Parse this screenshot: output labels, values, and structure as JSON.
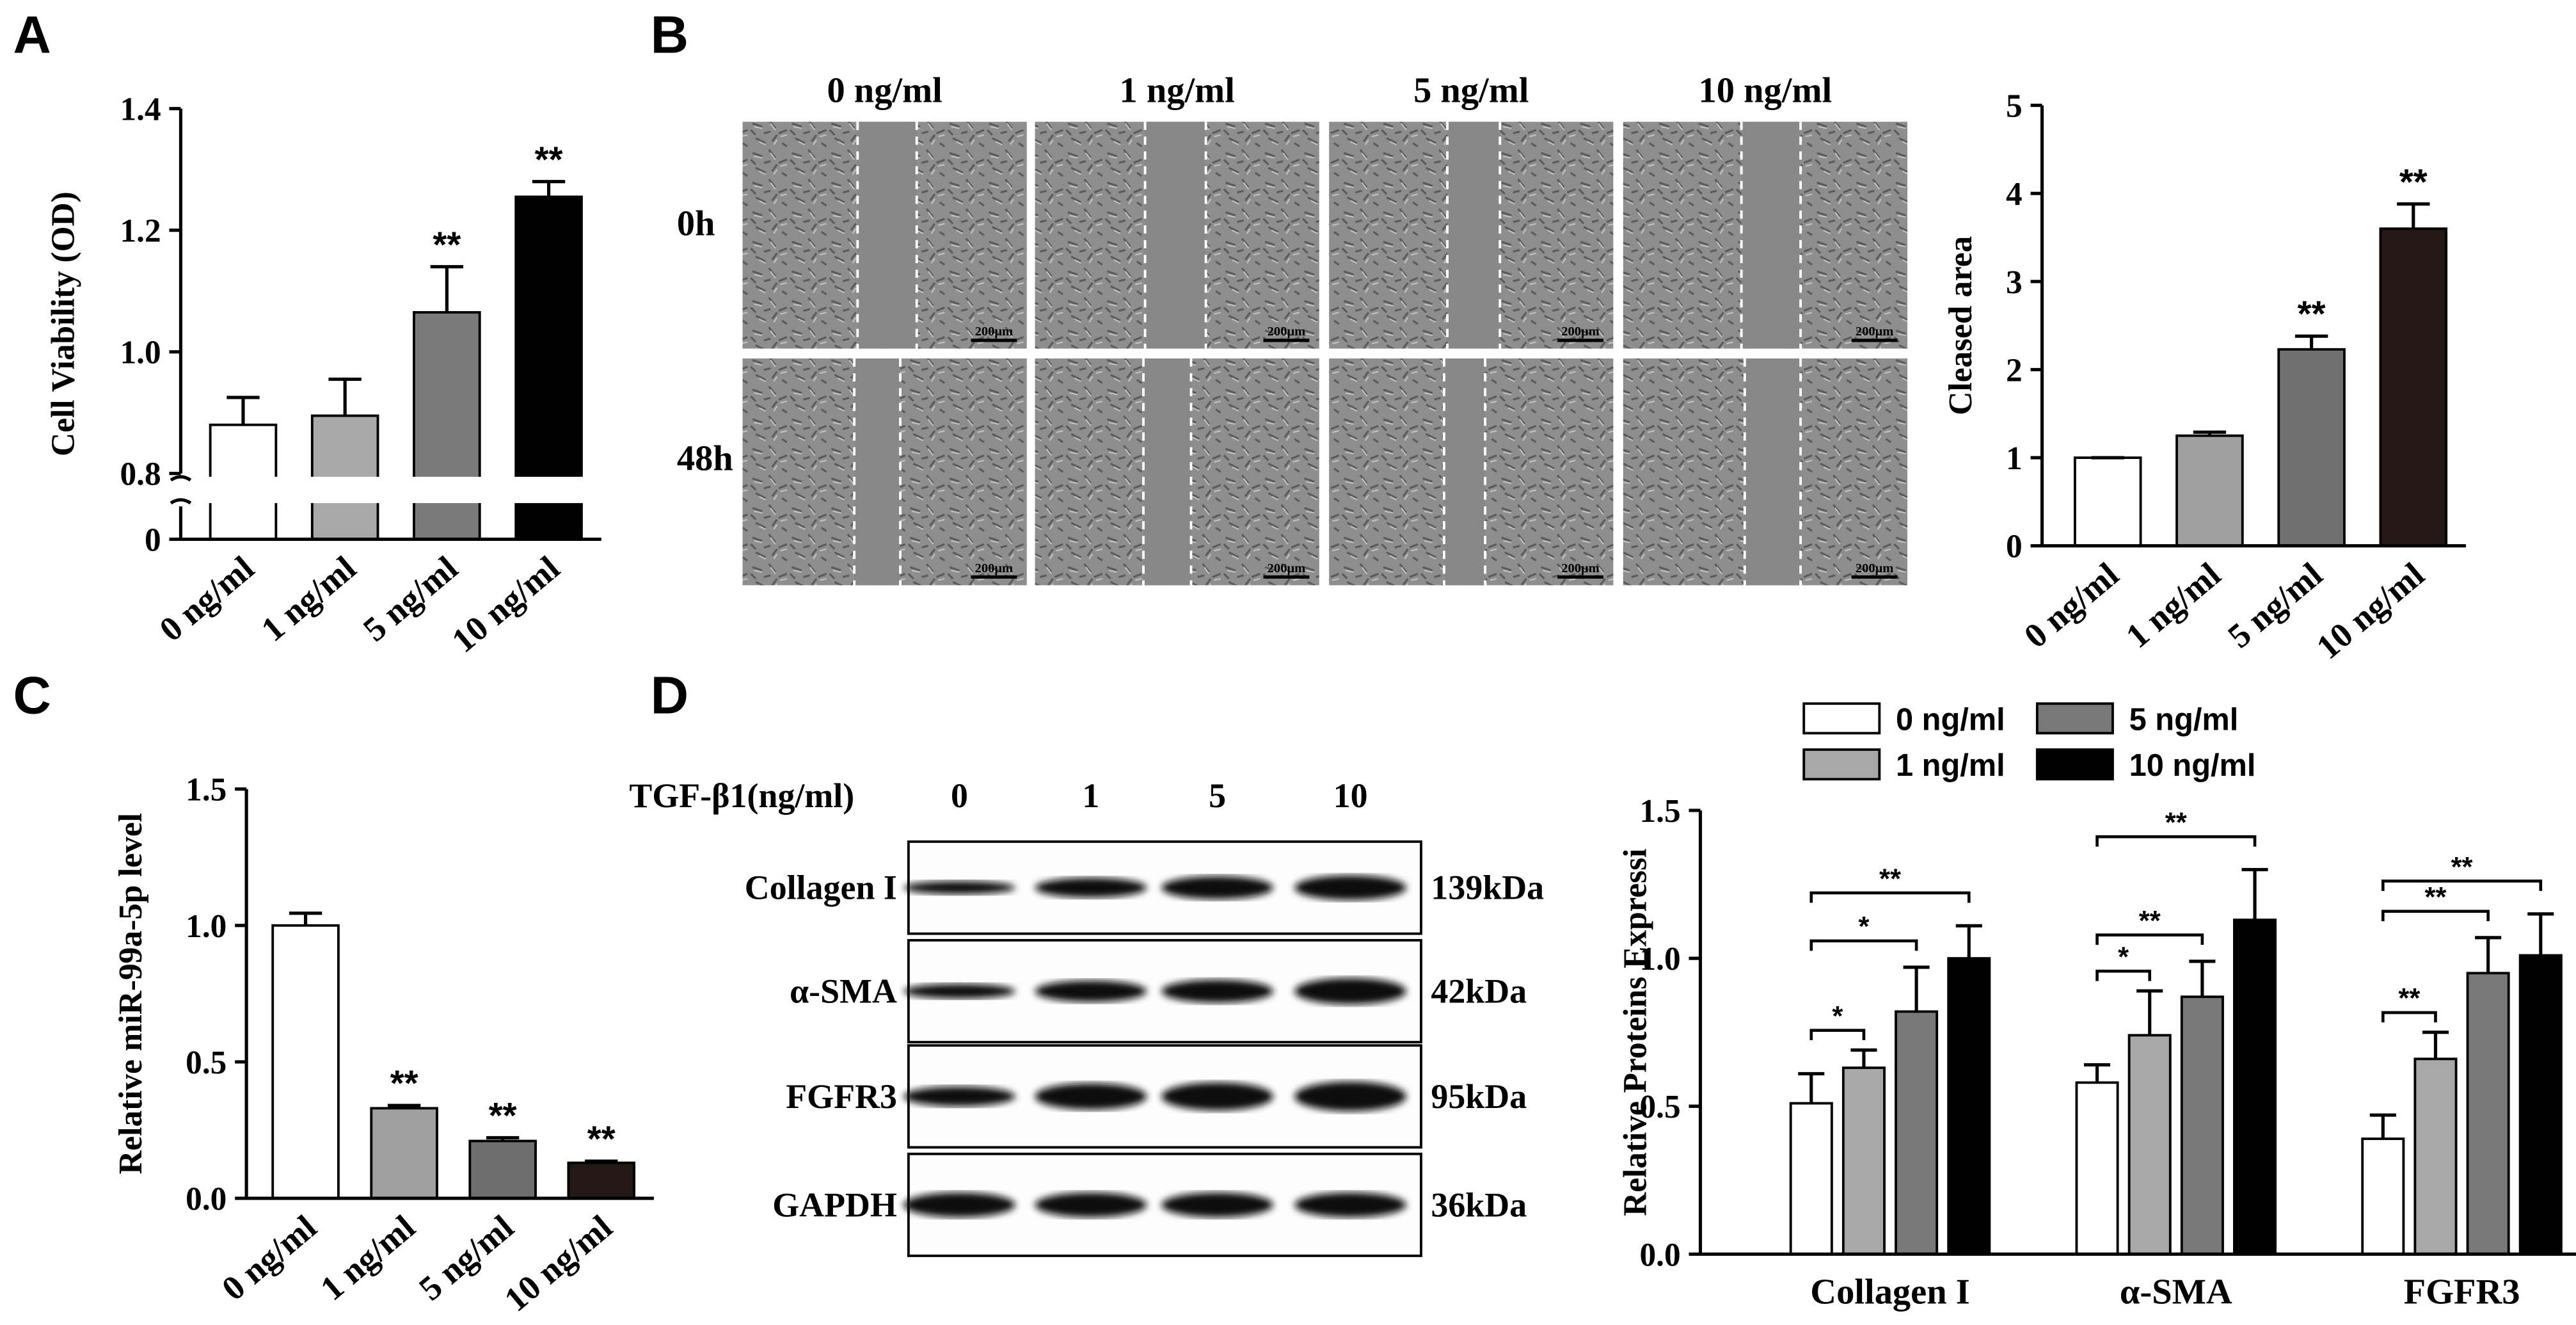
{
  "panel_labels": [
    "A",
    "B",
    "C",
    "D"
  ],
  "chart_data": [
    {
      "type": "bar",
      "ylabel": "Cell Viability (OD)",
      "categories": [
        "0 ng/ml",
        "1 ng/ml",
        "5 ng/ml",
        "10 ng/ml"
      ],
      "values": [
        0.88,
        0.895,
        1.065,
        1.255
      ],
      "errors": [
        0.045,
        0.06,
        0.075,
        0.025
      ],
      "colors": [
        "#ffffff",
        "#a8a8a8",
        "#7a7a7a",
        "#000000"
      ],
      "significance": [
        null,
        null,
        "**",
        "**"
      ],
      "ylim": [
        0,
        1.4
      ],
      "ybreak": [
        0,
        0.8
      ],
      "yticks": [
        0,
        0.8,
        {
          "value": 1,
          "label": "1.0"
        },
        1.2,
        1.4
      ]
    },
    {
      "type": "bar",
      "ylabel": "Cleased area",
      "categories": [
        "0 ng/ml",
        "1 ng/ml",
        "5 ng/ml",
        "10 ng/ml"
      ],
      "values": [
        1,
        1.25,
        2.23,
        3.6
      ],
      "errors": [
        0,
        0.04,
        0.15,
        0.28
      ],
      "colors": [
        "#ffffff",
        "#a0a0a0",
        "#707070",
        "#231815"
      ],
      "significance": [
        null,
        null,
        "**",
        "**"
      ],
      "ylim": [
        0,
        5
      ],
      "yticks": [
        0,
        1,
        2,
        3,
        4,
        5
      ]
    },
    {
      "type": "bar",
      "ylabel": "Relative miR-99a-5p level",
      "categories": [
        "0 ng/ml",
        "1 ng/ml",
        "5 ng/ml",
        "10 ng/ml"
      ],
      "values": [
        1,
        0.33,
        0.21,
        0.13
      ],
      "errors": [
        0.045,
        0.01,
        0.012,
        0.006
      ],
      "colors": [
        "#ffffff",
        "#a0a0a0",
        "#6e6e6e",
        "#231815"
      ],
      "significance": [
        null,
        "**",
        "**",
        "**"
      ],
      "ylim": [
        0,
        1.5
      ],
      "yticks": [
        {
          "value": 0,
          "label": "0.0"
        },
        0.5,
        {
          "value": 1,
          "label": "1.0"
        },
        1.5
      ]
    },
    {
      "type": "grouped_bar",
      "ylabel": "Relative Proteins Expressi",
      "categories": [
        "Collagen I",
        "α-SMA",
        "FGFR3"
      ],
      "series": [
        {
          "name": "0 ng/ml",
          "color": "#ffffff",
          "values": [
            0.51,
            0.58,
            0.39
          ],
          "errors": [
            0.1,
            0.06,
            0.08
          ]
        },
        {
          "name": "1 ng/ml",
          "color": "#a8a8a8",
          "values": [
            0.63,
            0.74,
            0.66
          ],
          "errors": [
            0.06,
            0.15,
            0.09
          ]
        },
        {
          "name": "5 ng/ml",
          "color": "#787878",
          "values": [
            0.82,
            0.87,
            0.95
          ],
          "errors": [
            0.15,
            0.12,
            0.12
          ]
        },
        {
          "name": "10 ng/ml",
          "color": "#000000",
          "values": [
            1,
            1.13,
            1.01
          ],
          "errors": [
            0.11,
            0.17,
            0.14
          ]
        }
      ],
      "significance": [
        [
          "*",
          "*",
          "**"
        ],
        [
          "*",
          "**",
          "**"
        ],
        [
          "**",
          "**",
          "**"
        ]
      ],
      "ylim": [
        0,
        1.5
      ],
      "yticks": [
        {
          "value": 0,
          "label": "0.0"
        },
        0.5,
        {
          "value": 1,
          "label": "1.0"
        },
        1.5
      ],
      "legend": "top"
    }
  ],
  "scratch_assay": {
    "columns": [
      "0 ng/ml",
      "1 ng/ml",
      "5 ng/ml",
      "10 ng/ml"
    ],
    "rows": [
      "0h",
      "48h"
    ],
    "scale_bar": "200μm"
  },
  "western_blot": {
    "treatment_label": "TGF-β1(ng/ml)",
    "lanes": [
      "0",
      "1",
      "5",
      "10"
    ],
    "proteins": [
      {
        "name": "Collagen I",
        "size": "139kDa"
      },
      {
        "name": "α-SMA",
        "size": "42kDa"
      },
      {
        "name": "FGFR3",
        "size": "95kDa"
      },
      {
        "name": "GAPDH",
        "size": "36kDa"
      }
    ]
  }
}
